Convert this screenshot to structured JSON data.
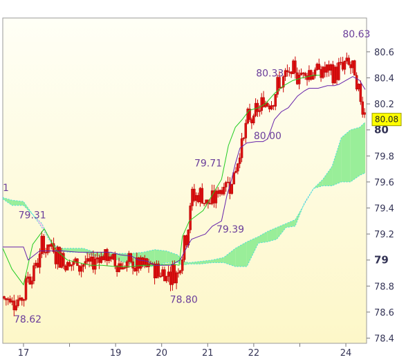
{
  "chart_data": {
    "type": "candlestick",
    "title": "",
    "xlabel": "",
    "ylabel": "",
    "ylim": [
      78.36,
      80.86
    ],
    "xlim": [
      16.55,
      24.45
    ],
    "y_ticks": [
      {
        "value": 78.4,
        "label": "78.4",
        "major": false
      },
      {
        "value": 78.6,
        "label": "78.6",
        "major": false
      },
      {
        "value": 78.8,
        "label": "78.8",
        "major": false
      },
      {
        "value": 79.0,
        "label": "79",
        "major": true
      },
      {
        "value": 79.2,
        "label": "79.2",
        "major": false
      },
      {
        "value": 79.4,
        "label": "79.4",
        "major": false
      },
      {
        "value": 79.6,
        "label": "79.6",
        "major": false
      },
      {
        "value": 79.8,
        "label": "79.8",
        "major": false
      },
      {
        "value": 80.0,
        "label": "80",
        "major": true
      },
      {
        "value": 80.2,
        "label": "80.2",
        "major": false
      },
      {
        "value": 80.4,
        "label": "80.4",
        "major": false
      },
      {
        "value": 80.6,
        "label": "80.6",
        "major": false
      }
    ],
    "x_ticks": [
      {
        "value": 17,
        "label": "17"
      },
      {
        "value": 18,
        "label": ""
      },
      {
        "value": 19,
        "label": "19"
      },
      {
        "value": 20,
        "label": "20"
      },
      {
        "value": 21,
        "label": "21"
      },
      {
        "value": 22,
        "label": "22"
      },
      {
        "value": 23,
        "label": ""
      },
      {
        "value": 24,
        "label": "24"
      }
    ],
    "last_price": {
      "value": 80.08,
      "label": "80.08"
    },
    "annotations": [
      {
        "text": "80.63",
        "x": 23.93,
        "y": 80.71
      },
      {
        "text": "80.33",
        "x": 22.05,
        "y": 80.41
      },
      {
        "text": "80.00",
        "x": 22.0,
        "y": 79.93
      },
      {
        "text": "79.71",
        "x": 20.71,
        "y": 79.72
      },
      {
        "text": "79.39",
        "x": 21.19,
        "y": 79.21
      },
      {
        "text": "79.31",
        "x": 16.89,
        "y": 79.32
      },
      {
        "text": "78.80",
        "x": 20.18,
        "y": 78.67
      },
      {
        "text": "78.62",
        "x": 16.79,
        "y": 78.52
      },
      {
        "text": "1",
        "x": 16.55,
        "y": 79.53
      }
    ],
    "series": [
      {
        "kind": "lagging-span",
        "color": "#22cc22",
        "points": [
          [
            16.55,
            79.09
          ],
          [
            16.75,
            78.93
          ],
          [
            17.0,
            78.81
          ],
          [
            17.2,
            79.12
          ],
          [
            17.45,
            79.24
          ],
          [
            17.7,
            79.08
          ],
          [
            17.95,
            79.0
          ],
          [
            18.2,
            78.98
          ],
          [
            18.45,
            78.96
          ],
          [
            18.7,
            78.96
          ],
          [
            19.0,
            78.95
          ],
          [
            19.3,
            78.95
          ],
          [
            19.6,
            78.96
          ],
          [
            19.9,
            78.96
          ],
          [
            20.2,
            78.97
          ],
          [
            20.38,
            78.96
          ],
          [
            20.45,
            79.18
          ],
          [
            20.6,
            79.3
          ],
          [
            20.75,
            79.34
          ],
          [
            20.9,
            79.38
          ],
          [
            21.1,
            79.5
          ],
          [
            21.3,
            79.62
          ],
          [
            21.45,
            79.88
          ],
          [
            21.6,
            80.02
          ],
          [
            21.75,
            80.08
          ],
          [
            21.9,
            80.15
          ],
          [
            22.1,
            80.17
          ],
          [
            22.25,
            80.2
          ],
          [
            22.45,
            80.28
          ],
          [
            22.65,
            80.34
          ],
          [
            22.85,
            80.38
          ],
          [
            23.05,
            80.4
          ],
          [
            23.3,
            80.42
          ],
          [
            23.45,
            80.42
          ]
        ]
      },
      {
        "kind": "base-line",
        "color": "#6622aa",
        "points": [
          [
            16.55,
            79.1
          ],
          [
            17.0,
            79.1
          ],
          [
            17.1,
            79.0
          ],
          [
            17.35,
            79.07
          ],
          [
            17.6,
            79.07
          ],
          [
            17.85,
            79.07
          ],
          [
            18.2,
            79.06
          ],
          [
            18.6,
            79.06
          ],
          [
            18.9,
            79.06
          ],
          [
            19.1,
            79.04
          ],
          [
            19.35,
            79.03
          ],
          [
            19.5,
            79.0
          ],
          [
            19.7,
            78.99
          ],
          [
            19.85,
            78.96
          ],
          [
            20.05,
            78.96
          ],
          [
            20.2,
            78.96
          ],
          [
            20.4,
            79.0
          ],
          [
            20.55,
            79.1
          ],
          [
            20.65,
            79.16
          ],
          [
            20.8,
            79.18
          ],
          [
            20.95,
            79.2
          ],
          [
            21.1,
            79.26
          ],
          [
            21.3,
            79.3
          ],
          [
            21.42,
            79.5
          ],
          [
            21.52,
            79.62
          ],
          [
            21.6,
            79.74
          ],
          [
            21.7,
            79.86
          ],
          [
            21.85,
            79.9
          ],
          [
            22.05,
            79.91
          ],
          [
            22.2,
            79.91
          ],
          [
            22.3,
            79.93
          ],
          [
            22.45,
            80.08
          ],
          [
            22.6,
            80.14
          ],
          [
            22.75,
            80.17
          ],
          [
            22.95,
            80.26
          ],
          [
            23.1,
            80.3
          ],
          [
            23.2,
            80.32
          ],
          [
            23.4,
            80.32
          ],
          [
            23.6,
            80.34
          ],
          [
            23.75,
            80.34
          ],
          [
            23.85,
            80.35
          ],
          [
            24.0,
            80.38
          ],
          [
            24.15,
            80.41
          ],
          [
            24.3,
            80.38
          ],
          [
            24.42,
            80.31
          ]
        ]
      },
      {
        "kind": "conversion-line",
        "color": "#22cc22",
        "points": [
          [
            16.55,
            78.7
          ],
          [
            17.0,
            78.7
          ],
          [
            17.05,
            78.85
          ],
          [
            17.25,
            78.93
          ],
          [
            17.4,
            79.1
          ],
          [
            17.6,
            79.1
          ],
          [
            17.75,
            79.04
          ],
          [
            17.9,
            78.99
          ],
          [
            18.1,
            78.97
          ],
          [
            18.3,
            78.97
          ],
          [
            18.5,
            78.97
          ],
          [
            18.65,
            79.05
          ],
          [
            18.8,
            79.02
          ],
          [
            19.0,
            78.98
          ],
          [
            19.2,
            78.96
          ],
          [
            19.35,
            78.96
          ],
          [
            19.6,
            78.95
          ],
          [
            19.8,
            78.94
          ],
          [
            20.0,
            78.9
          ],
          [
            20.2,
            78.9
          ],
          [
            20.35,
            78.9
          ],
          [
            20.45,
            79.08
          ],
          [
            20.55,
            79.22
          ],
          [
            20.65,
            79.48
          ],
          [
            20.85,
            79.5
          ],
          [
            21.05,
            79.42
          ],
          [
            21.15,
            79.48
          ],
          [
            21.3,
            79.56
          ],
          [
            21.55,
            79.62
          ],
          [
            21.7,
            79.84
          ],
          [
            21.85,
            80.06
          ],
          [
            22.05,
            80.12
          ],
          [
            22.2,
            80.2
          ],
          [
            22.4,
            80.25
          ],
          [
            22.55,
            80.34
          ],
          [
            22.75,
            80.42
          ],
          [
            22.95,
            80.43
          ],
          [
            23.15,
            80.45
          ],
          [
            23.35,
            80.45
          ],
          [
            23.55,
            80.45
          ],
          [
            23.75,
            80.43
          ],
          [
            23.9,
            80.48
          ],
          [
            24.05,
            80.52
          ],
          [
            24.15,
            80.46
          ],
          [
            24.25,
            80.3
          ],
          [
            24.35,
            80.2
          ],
          [
            24.42,
            80.15
          ]
        ]
      },
      {
        "kind": "span-a",
        "color": "#44dddd",
        "points": [
          [
            16.55,
            79.48
          ],
          [
            16.75,
            79.46
          ],
          [
            17.0,
            79.45
          ],
          [
            17.2,
            79.35
          ],
          [
            17.4,
            79.25
          ],
          [
            17.6,
            79.13
          ],
          [
            17.8,
            79.09
          ],
          [
            18.0,
            79.09
          ],
          [
            18.3,
            79.09
          ],
          [
            18.55,
            79.06
          ],
          [
            18.8,
            79.06
          ],
          [
            19.05,
            79.05
          ],
          [
            19.3,
            79.05
          ],
          [
            19.6,
            79.06
          ],
          [
            19.85,
            79.08
          ],
          [
            20.1,
            79.07
          ],
          [
            20.35,
            79.04
          ],
          [
            20.45,
            78.99
          ],
          [
            20.6,
            78.98
          ],
          [
            20.85,
            78.99
          ],
          [
            21.1,
            79.0
          ],
          [
            21.35,
            79.02
          ],
          [
            21.6,
            79.09
          ],
          [
            21.85,
            79.14
          ],
          [
            22.1,
            79.18
          ],
          [
            22.3,
            79.22
          ],
          [
            22.5,
            79.25
          ],
          [
            22.7,
            79.28
          ],
          [
            22.9,
            79.31
          ],
          [
            23.1,
            79.43
          ],
          [
            23.3,
            79.55
          ],
          [
            23.5,
            79.62
          ],
          [
            23.7,
            79.72
          ],
          [
            23.9,
            79.94
          ],
          [
            24.1,
            80.0
          ],
          [
            24.3,
            80.02
          ],
          [
            24.42,
            80.06
          ]
        ]
      },
      {
        "kind": "span-b",
        "color": "#44dddd",
        "points": [
          [
            16.55,
            79.47
          ],
          [
            16.75,
            79.42
          ],
          [
            17.0,
            79.42
          ],
          [
            17.2,
            79.35
          ],
          [
            17.4,
            79.28
          ],
          [
            17.6,
            79.14
          ],
          [
            17.8,
            79.07
          ],
          [
            18.0,
            79.06
          ],
          [
            18.3,
            79.06
          ],
          [
            18.55,
            79.03
          ],
          [
            18.8,
            79.02
          ],
          [
            19.05,
            79.0
          ],
          [
            19.3,
            78.97
          ],
          [
            19.6,
            78.95
          ],
          [
            19.85,
            78.95
          ],
          [
            20.1,
            78.98
          ],
          [
            20.35,
            78.98
          ],
          [
            20.45,
            78.96
          ],
          [
            20.6,
            78.97
          ],
          [
            20.85,
            78.97
          ],
          [
            21.1,
            78.98
          ],
          [
            21.35,
            78.98
          ],
          [
            21.6,
            78.95
          ],
          [
            21.85,
            78.95
          ],
          [
            22.1,
            79.13
          ],
          [
            22.3,
            79.14
          ],
          [
            22.5,
            79.16
          ],
          [
            22.7,
            79.25
          ],
          [
            22.9,
            79.26
          ],
          [
            23.1,
            79.44
          ],
          [
            23.3,
            79.55
          ],
          [
            23.5,
            79.57
          ],
          [
            23.7,
            79.57
          ],
          [
            23.9,
            79.6
          ],
          [
            24.1,
            79.6
          ],
          [
            24.3,
            79.65
          ],
          [
            24.42,
            79.67
          ]
        ]
      }
    ]
  }
}
